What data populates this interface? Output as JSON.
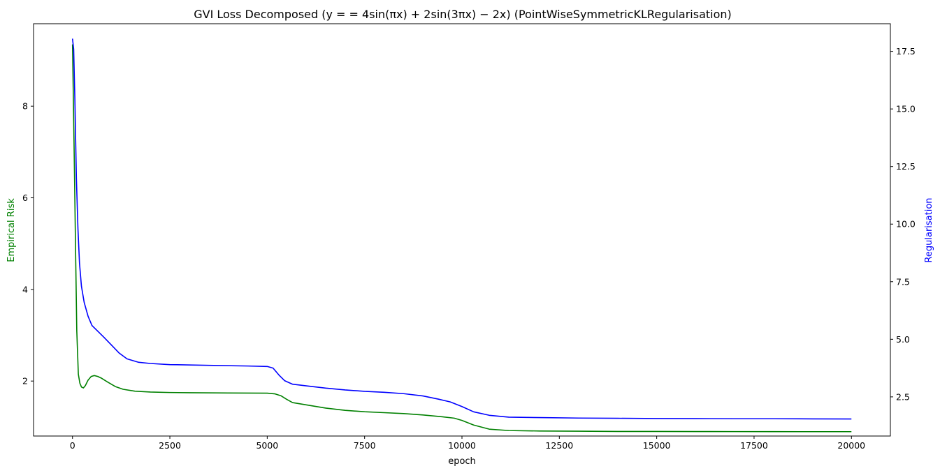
{
  "chart_data": {
    "type": "line",
    "title": "GVI Loss Decomposed ($y==4\\sin(\\pi x) + 2\\sin(3\\pi x) - 2x$) (PointWiseSymmetricKLRegularisation)",
    "title_rendered": "GVI Loss Decomposed (y = = 4sin(πx) + 2sin(3πx) − 2x) (PointWiseSymmetricKLRegularisation)",
    "xlabel": "epoch",
    "ylabel_left": "Empirical Risk",
    "ylabel_right": "Regularisation",
    "xlim": [
      -1000,
      21000
    ],
    "ylim_left": [
      0.8,
      9.8
    ],
    "ylim_right": [
      0.8,
      18.7
    ],
    "x_ticks": [
      0,
      2500,
      5000,
      7500,
      10000,
      12500,
      15000,
      17500,
      20000
    ],
    "y_ticks_left": [
      2,
      4,
      6,
      8
    ],
    "y_ticks_right": [
      2.5,
      5.0,
      7.5,
      10.0,
      12.5,
      15.0,
      17.5
    ],
    "grid": false,
    "colors": {
      "empirical_risk": "#008000",
      "regularisation": "#0000ff"
    },
    "series": [
      {
        "name": "Empirical Risk",
        "axis": "left",
        "color": "#008000",
        "x": [
          0,
          20,
          50,
          80,
          110,
          150,
          190,
          230,
          280,
          330,
          400,
          480,
          560,
          650,
          750,
          900,
          1100,
          1300,
          1600,
          2000,
          2500,
          3000,
          4000,
          5000,
          5200,
          5350,
          5500,
          5650,
          6000,
          6500,
          7000,
          7500,
          8000,
          8500,
          9000,
          9500,
          9800,
          10000,
          10300,
          10700,
          11200,
          12000,
          13000,
          14000,
          15000,
          16000,
          17000,
          18000,
          19000,
          20000
        ],
        "values": [
          9.35,
          8.3,
          6.6,
          4.8,
          3.1,
          2.15,
          1.95,
          1.87,
          1.85,
          1.9,
          2.02,
          2.1,
          2.12,
          2.1,
          2.06,
          1.98,
          1.88,
          1.82,
          1.78,
          1.76,
          1.75,
          1.745,
          1.74,
          1.735,
          1.72,
          1.68,
          1.6,
          1.53,
          1.48,
          1.41,
          1.36,
          1.33,
          1.31,
          1.29,
          1.26,
          1.22,
          1.19,
          1.14,
          1.04,
          0.95,
          0.92,
          0.91,
          0.905,
          0.9,
          0.9,
          0.898,
          0.897,
          0.896,
          0.895,
          0.895
        ]
      },
      {
        "name": "Regularisation",
        "axis": "right",
        "color": "#0000ff",
        "x": [
          0,
          30,
          60,
          100,
          140,
          180,
          230,
          300,
          400,
          500,
          650,
          800,
          1000,
          1200,
          1400,
          1700,
          2000,
          2500,
          3500,
          4500,
          5000,
          5150,
          5300,
          5450,
          5650,
          6000,
          6500,
          7000,
          7500,
          8000,
          8500,
          9000,
          9400,
          9700,
          10000,
          10300,
          10700,
          11200,
          12000,
          13000,
          14000,
          15000,
          16000,
          17000,
          18000,
          19000,
          20000
        ],
        "values": [
          18.05,
          17.6,
          15.5,
          12.0,
          9.8,
          8.3,
          7.3,
          6.6,
          6.0,
          5.6,
          5.35,
          5.1,
          4.75,
          4.4,
          4.15,
          4.0,
          3.95,
          3.9,
          3.87,
          3.84,
          3.82,
          3.75,
          3.45,
          3.2,
          3.05,
          2.98,
          2.88,
          2.8,
          2.74,
          2.7,
          2.64,
          2.54,
          2.4,
          2.28,
          2.08,
          1.85,
          1.7,
          1.62,
          1.6,
          1.58,
          1.57,
          1.56,
          1.555,
          1.55,
          1.55,
          1.545,
          1.54
        ]
      }
    ]
  }
}
